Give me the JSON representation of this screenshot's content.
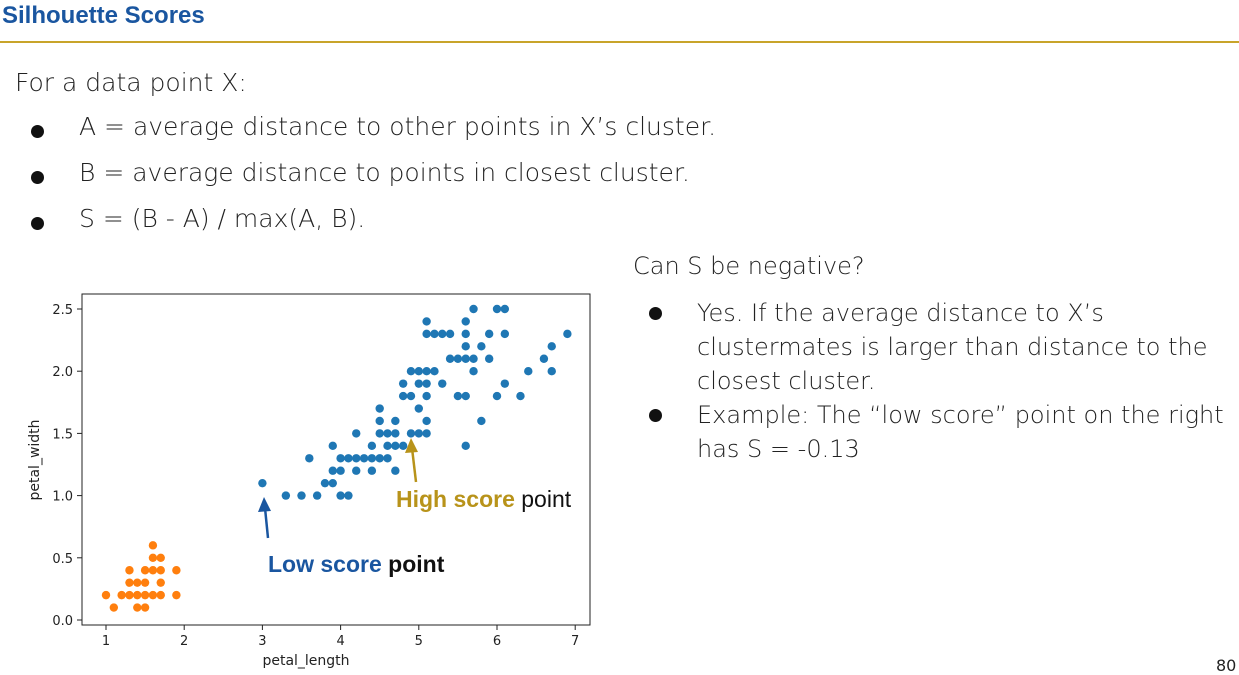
{
  "slide": {
    "title": "Silhouette Scores",
    "intro": "For a data point X:",
    "bullets": [
      "A = average distance to other points in X’s cluster.",
      "B = average distance to points in closest cluster.",
      "S = (B - A) / max(A, B)."
    ],
    "question": "Can S be negative?",
    "answers": [
      "Yes. If the average distance to X’s clustermates is larger than distance to the closest cluster.",
      "Example: The “low score” point on the right has  S = -0.13"
    ],
    "page_number": "80"
  },
  "annotations": {
    "high_label": "High score",
    "high_suffix": " point",
    "low_label": "Low score",
    "low_suffix": " point"
  },
  "colors": {
    "title": "#1a56a0",
    "rule": "#c8a42a",
    "cluster_blue": "#1f77b4",
    "cluster_orange": "#ff7f0e",
    "high_annotation": "#b8931a",
    "low_annotation": "#1a56a0"
  },
  "chart_data": {
    "type": "scatter",
    "xlabel": "petal_length",
    "ylabel": "petal_width",
    "xlim": [
      0.6,
      7.3
    ],
    "ylim": [
      -0.05,
      2.6
    ],
    "xticks": [
      1,
      2,
      3,
      4,
      5,
      6,
      7
    ],
    "yticks": [
      "0.0",
      "0.5",
      "1.0",
      "1.5",
      "2.0",
      "2.5"
    ],
    "series": [
      {
        "color": "#ff7f0e",
        "points": [
          [
            1.0,
            0.2
          ],
          [
            1.1,
            0.1
          ],
          [
            1.2,
            0.2
          ],
          [
            1.3,
            0.2
          ],
          [
            1.4,
            0.2
          ],
          [
            1.5,
            0.2
          ],
          [
            1.6,
            0.2
          ],
          [
            1.7,
            0.2
          ],
          [
            1.9,
            0.2
          ],
          [
            1.4,
            0.1
          ],
          [
            1.5,
            0.1
          ],
          [
            1.3,
            0.3
          ],
          [
            1.4,
            0.3
          ],
          [
            1.5,
            0.3
          ],
          [
            1.7,
            0.3
          ],
          [
            1.3,
            0.4
          ],
          [
            1.5,
            0.4
          ],
          [
            1.6,
            0.4
          ],
          [
            1.7,
            0.4
          ],
          [
            1.9,
            0.4
          ],
          [
            1.6,
            0.5
          ],
          [
            1.7,
            0.5
          ],
          [
            1.6,
            0.6
          ]
        ]
      },
      {
        "color": "#1f77b4",
        "points": [
          [
            3.0,
            1.1
          ],
          [
            3.3,
            1.0
          ],
          [
            3.5,
            1.0
          ],
          [
            3.7,
            1.0
          ],
          [
            4.0,
            1.0
          ],
          [
            4.1,
            1.0
          ],
          [
            3.8,
            1.1
          ],
          [
            3.9,
            1.1
          ],
          [
            3.9,
            1.2
          ],
          [
            4.0,
            1.2
          ],
          [
            4.2,
            1.2
          ],
          [
            4.4,
            1.2
          ],
          [
            4.7,
            1.2
          ],
          [
            3.6,
            1.3
          ],
          [
            4.0,
            1.3
          ],
          [
            4.1,
            1.3
          ],
          [
            4.2,
            1.3
          ],
          [
            4.3,
            1.3
          ],
          [
            4.4,
            1.3
          ],
          [
            4.5,
            1.3
          ],
          [
            4.6,
            1.3
          ],
          [
            3.9,
            1.4
          ],
          [
            4.4,
            1.4
          ],
          [
            4.6,
            1.4
          ],
          [
            4.7,
            1.4
          ],
          [
            4.8,
            1.4
          ],
          [
            5.6,
            1.4
          ],
          [
            4.2,
            1.5
          ],
          [
            4.5,
            1.5
          ],
          [
            4.6,
            1.5
          ],
          [
            4.7,
            1.5
          ],
          [
            4.9,
            1.5
          ],
          [
            5.0,
            1.5
          ],
          [
            5.1,
            1.5
          ],
          [
            5.8,
            1.6
          ],
          [
            4.5,
            1.6
          ],
          [
            4.7,
            1.6
          ],
          [
            5.1,
            1.6
          ],
          [
            4.5,
            1.7
          ],
          [
            5.0,
            1.7
          ],
          [
            4.8,
            1.8
          ],
          [
            4.9,
            1.8
          ],
          [
            5.1,
            1.8
          ],
          [
            5.5,
            1.8
          ],
          [
            5.6,
            1.8
          ],
          [
            6.0,
            1.8
          ],
          [
            6.3,
            1.8
          ],
          [
            4.8,
            1.9
          ],
          [
            5.0,
            1.9
          ],
          [
            5.1,
            1.9
          ],
          [
            5.3,
            1.9
          ],
          [
            6.1,
            1.9
          ],
          [
            4.9,
            2.0
          ],
          [
            5.0,
            2.0
          ],
          [
            5.1,
            2.0
          ],
          [
            5.2,
            2.0
          ],
          [
            5.7,
            2.0
          ],
          [
            6.4,
            2.0
          ],
          [
            6.7,
            2.0
          ],
          [
            5.4,
            2.1
          ],
          [
            5.5,
            2.1
          ],
          [
            5.6,
            2.1
          ],
          [
            5.7,
            2.1
          ],
          [
            5.9,
            2.1
          ],
          [
            6.6,
            2.1
          ],
          [
            5.6,
            2.2
          ],
          [
            5.8,
            2.2
          ],
          [
            6.7,
            2.2
          ],
          [
            5.1,
            2.3
          ],
          [
            5.2,
            2.3
          ],
          [
            5.3,
            2.3
          ],
          [
            5.4,
            2.3
          ],
          [
            5.6,
            2.3
          ],
          [
            5.9,
            2.3
          ],
          [
            6.1,
            2.3
          ],
          [
            6.9,
            2.3
          ],
          [
            5.1,
            2.4
          ],
          [
            5.6,
            2.4
          ],
          [
            5.7,
            2.5
          ],
          [
            6.0,
            2.5
          ],
          [
            6.1,
            2.5
          ]
        ]
      }
    ]
  }
}
